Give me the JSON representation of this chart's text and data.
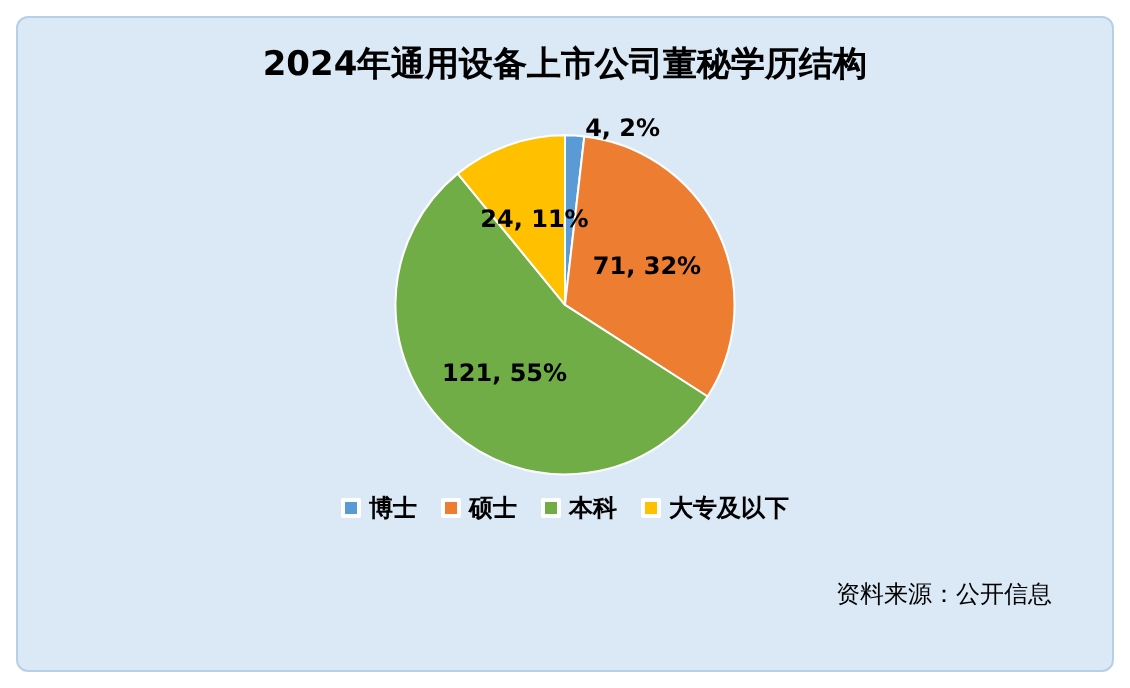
{
  "chart_data": {
    "type": "pie",
    "title": "2024年通用设备上市公司董秘学历结构",
    "categories": [
      "博士",
      "硕士",
      "本科",
      "大专及以下"
    ],
    "values": [
      4,
      71,
      121,
      24
    ],
    "value_labels": [
      "4, 2%",
      "71, 32%",
      "121, 55%",
      "24, 11%"
    ],
    "colors": [
      "#5b9bd5",
      "#ed7d31",
      "#70ad47",
      "#ffc000"
    ],
    "legend": "bottom",
    "annotations": [
      "资料来源：公开信息"
    ]
  }
}
